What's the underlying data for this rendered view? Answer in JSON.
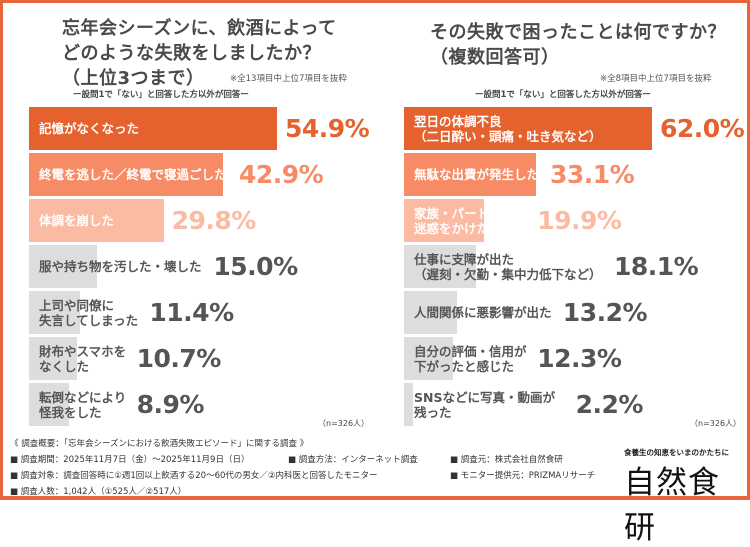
{
  "chart_data": [
    {
      "type": "bar",
      "orientation": "horizontal",
      "title": "忘年会シーズンに、飲酒によって\nどのような失敗をしましたか？\n（上位3つまで）",
      "note": "※全13項目中上位7項目を抜粋",
      "subtitle": "ー設問1で「ない」と回答した方以外が回答ー",
      "n": "（n=326人）",
      "categories": [
        "記憶がなくなった",
        "終電を逃した／終電で寝過ごした",
        "体調を崩した",
        "服や持ち物を汚した・壊した",
        "上司や同僚に\n失言してしまった",
        "財布やスマホを\nなくした",
        "転倒などにより\n怪我をした"
      ],
      "values": [
        54.9,
        42.9,
        29.8,
        15.0,
        11.4,
        10.7,
        8.9
      ],
      "value_labels": [
        "54.9%",
        "42.9%",
        "29.8%",
        "15.0%",
        "11.4%",
        "10.7%",
        "8.9%"
      ]
    },
    {
      "type": "bar",
      "orientation": "horizontal",
      "title": "その失敗で困ったことは何ですか？\n（複数回答可）",
      "note": "※全8項目中上位7項目を抜粋",
      "subtitle": "ー設問1で「ない」と回答した方以外が回答ー",
      "n": "（n=326人）",
      "categories": [
        "翌日の体調不良\n（二日酔い・頭痛・吐き気など）",
        "無駄な出費が発生した",
        "家族・パートナーに\n迷惑をかけた",
        "仕事に支障が出た\n（遅刻・欠勤・集中力低下など）",
        "人間関係に悪影響が出た",
        "自分の評価・信用が\n下がったと感じた",
        "SNSなどに写真・動画が\n残った"
      ],
      "values": [
        62.0,
        33.1,
        19.9,
        18.1,
        13.2,
        12.3,
        2.2
      ],
      "value_labels": [
        "62.0%",
        "33.1%",
        "19.9%",
        "18.1%",
        "13.2%",
        "12.3%",
        "2.2%"
      ]
    }
  ],
  "colors": {
    "rank1": "#e5622f",
    "rank2": "#f78b66",
    "rank3": "#fbbba3",
    "other": "#dddddd",
    "other_text": "#555555",
    "frame": "#e8643a"
  },
  "footer": {
    "heading": "《 調査概要：「忘年会シーズンにおける飲酒失敗エピソード」に関する調査 》",
    "period": "■ 調査期間：2025年11月7日（金）～2025年11月9日（日）",
    "method": "■ 調査方法：インターネット調査",
    "source": "■ 調査元：株式会社自然食研",
    "target": "■ 調査対象：調査回答時に①週1回以上飲酒する20～60代の男女／②内科医と回答したモニター",
    "provider": "■ モニター提供元：PRIZMAリサーチ",
    "count": "■ 調査人数：1,042人（①525人／②517人）"
  },
  "logo": {
    "tagline": "食養生の知恵をいまのかたちに",
    "name": "自然食研"
  }
}
